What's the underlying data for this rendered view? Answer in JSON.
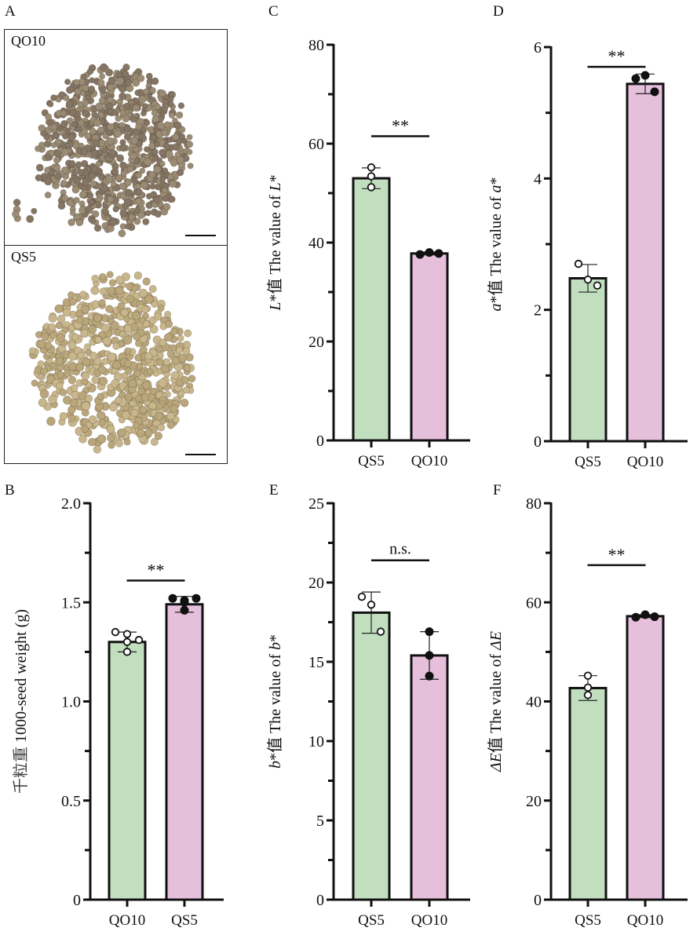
{
  "panels": {
    "A": {
      "letter": "A",
      "top_label": "QO10",
      "bottom_label": "QS5"
    },
    "B": {
      "letter": "B"
    },
    "C": {
      "letter": "C"
    },
    "D": {
      "letter": "D"
    },
    "E": {
      "letter": "E"
    },
    "F": {
      "letter": "F"
    }
  },
  "colors": {
    "QS5": "#c1dfbf",
    "QO10": "#e6bfdb",
    "seed_dark": "#8a7a62",
    "seed_light": "#c9b98e",
    "axis": "#111111"
  },
  "chart_data": [
    {
      "id": "B",
      "type": "bar",
      "ylabel_cn": "千粒重",
      "ylabel_en": "1000-seed weight (g)",
      "categories": [
        "QO10",
        "QS5"
      ],
      "values": [
        1.3,
        1.49
      ],
      "errors": [
        0.05,
        0.04
      ],
      "points": [
        [
          1.35,
          1.34,
          1.3,
          1.31,
          1.25
        ],
        [
          1.52,
          1.51,
          1.5,
          1.52,
          1.46
        ]
      ],
      "fill_keys": [
        "QS5",
        "QO10"
      ],
      "point_style": [
        "open",
        "filled"
      ],
      "ylim": [
        0,
        2.0
      ],
      "yticks": [
        "0",
        "0.5",
        "1.0",
        "1.5",
        "2.0"
      ],
      "ytick_values": [
        0,
        0.5,
        1.0,
        1.5,
        2.0
      ],
      "minor_step": 0.25,
      "significance": "**",
      "sig_level": 1.61
    },
    {
      "id": "C",
      "type": "bar",
      "ylabel_pre": "L",
      "ylabel_mid": "*值  The value of ",
      "ylabel_post": "L",
      "ylabel_tail": "*",
      "categories": [
        "QS5",
        "QO10"
      ],
      "values": [
        53.0,
        37.8
      ],
      "errors": [
        2.1,
        0.3
      ],
      "points": [
        [
          55.2,
          53.4,
          51.2
        ],
        [
          37.6,
          38.0,
          37.8
        ]
      ],
      "fill_keys": [
        "QS5",
        "QO10"
      ],
      "point_style": [
        "open",
        "filled"
      ],
      "ylim": [
        0,
        80
      ],
      "yticks": [
        "0",
        "20",
        "40",
        "60",
        "80"
      ],
      "ytick_values": [
        0,
        20,
        40,
        60,
        80
      ],
      "minor_step": 10,
      "significance": "**",
      "sig_level": 61.5
    },
    {
      "id": "D",
      "type": "bar",
      "ylabel_pre": "a",
      "ylabel_mid": "*值  The value of ",
      "ylabel_post": "a",
      "ylabel_tail": "*",
      "categories": [
        "QS5",
        "QO10"
      ],
      "values": [
        2.48,
        5.44
      ],
      "errors": [
        0.21,
        0.15
      ],
      "points": [
        [
          2.7,
          2.46,
          2.37
        ],
        [
          5.52,
          5.57,
          5.32
        ]
      ],
      "fill_keys": [
        "QS5",
        "QO10"
      ],
      "point_style": [
        "open",
        "filled"
      ],
      "ylim": [
        0,
        6
      ],
      "yticks": [
        "0",
        "2",
        "4",
        "6"
      ],
      "ytick_values": [
        0,
        2,
        4,
        6
      ],
      "minor_step": 1,
      "significance": "**",
      "sig_level": 5.7
    },
    {
      "id": "E",
      "type": "bar",
      "ylabel_pre": "b",
      "ylabel_mid": "*值  The value of ",
      "ylabel_post": "b",
      "ylabel_tail": "*",
      "categories": [
        "QS5",
        "QO10"
      ],
      "values": [
        18.1,
        15.4
      ],
      "errors": [
        1.3,
        1.5
      ],
      "points": [
        [
          19.1,
          18.6,
          16.9
        ],
        [
          16.9,
          15.4,
          14.1
        ]
      ],
      "fill_keys": [
        "QS5",
        "QO10"
      ],
      "point_style": [
        "open",
        "filled"
      ],
      "ylim": [
        0,
        25
      ],
      "yticks": [
        "0",
        "5",
        "10",
        "15",
        "20",
        "25"
      ],
      "ytick_values": [
        0,
        5,
        10,
        15,
        20,
        25
      ],
      "minor_step": 2.5,
      "significance": "n.s.",
      "sig_level": 21.4
    },
    {
      "id": "F",
      "type": "bar",
      "ylabel_pre": "ΔE",
      "ylabel_mid": "值 The value of ",
      "ylabel_post": "ΔE",
      "ylabel_tail": "",
      "categories": [
        "QS5",
        "QO10"
      ],
      "values": [
        42.7,
        57.2
      ],
      "errors": [
        2.5,
        0.3
      ],
      "points": [
        [
          45.2,
          42.8,
          41.3
        ],
        [
          57.0,
          57.5,
          57.1
        ]
      ],
      "fill_keys": [
        "QS5",
        "QO10"
      ],
      "point_style": [
        "open",
        "filled"
      ],
      "ylim": [
        0,
        80
      ],
      "yticks": [
        "0",
        "20",
        "40",
        "60",
        "80"
      ],
      "ytick_values": [
        0,
        20,
        40,
        60,
        80
      ],
      "minor_step": 10,
      "significance": "**",
      "sig_level": 67.5
    }
  ]
}
